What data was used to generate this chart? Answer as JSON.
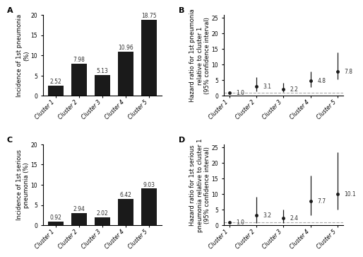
{
  "clusters": [
    "Cluster 1",
    "Cluster 2",
    "Cluster 3",
    "Cluster 4",
    "Cluster 5"
  ],
  "panel_A_values": [
    2.52,
    7.98,
    5.13,
    10.96,
    18.75
  ],
  "panel_A_ylabel": "Incidence of 1st pneumonia\n(%)",
  "panel_A_ylim": [
    0,
    20
  ],
  "panel_A_yticks": [
    0,
    5,
    10,
    15,
    20
  ],
  "panel_C_values": [
    0.92,
    2.94,
    2.02,
    6.42,
    9.03
  ],
  "panel_C_ylabel": "Incidence of 1st serious\npneumonia (%)",
  "panel_C_ylim": [
    0,
    20
  ],
  "panel_C_yticks": [
    0,
    5,
    10,
    15,
    20
  ],
  "panel_B_values": [
    1.0,
    3.1,
    2.2,
    4.8,
    7.8
  ],
  "panel_B_ci_low": [
    1.0,
    1.5,
    1.1,
    2.8,
    5.2
  ],
  "panel_B_ci_high": [
    1.0,
    6.0,
    4.2,
    7.8,
    14.0
  ],
  "panel_B_ylabel": "Hazard ratio for 1st pneumonia\nrelative to cluster 1\n(95% confidence interval)",
  "panel_B_ylim": [
    0,
    26
  ],
  "panel_B_yticks": [
    0,
    5,
    10,
    15,
    20,
    25
  ],
  "panel_D_values": [
    1.0,
    3.2,
    2.4,
    7.7,
    10.1
  ],
  "panel_D_ci_low": [
    1.0,
    0.8,
    0.6,
    3.2,
    5.0
  ],
  "panel_D_ci_high": [
    1.0,
    9.2,
    5.0,
    16.0,
    23.5
  ],
  "panel_D_ylabel": "Hazard ratio for 1st serious\npneumonia relative to cluster 1\n(95% confidence interval)",
  "panel_D_ylim": [
    0,
    26
  ],
  "panel_D_yticks": [
    0,
    5,
    10,
    15,
    20,
    25
  ],
  "bar_color": "#1a1a1a",
  "dot_color": "#1a1a1a",
  "ref_line_color": "#aaaaaa",
  "label_fontsize": 6.0,
  "tick_fontsize": 5.5,
  "panel_label_fontsize": 8,
  "value_label_fontsize": 5.5
}
